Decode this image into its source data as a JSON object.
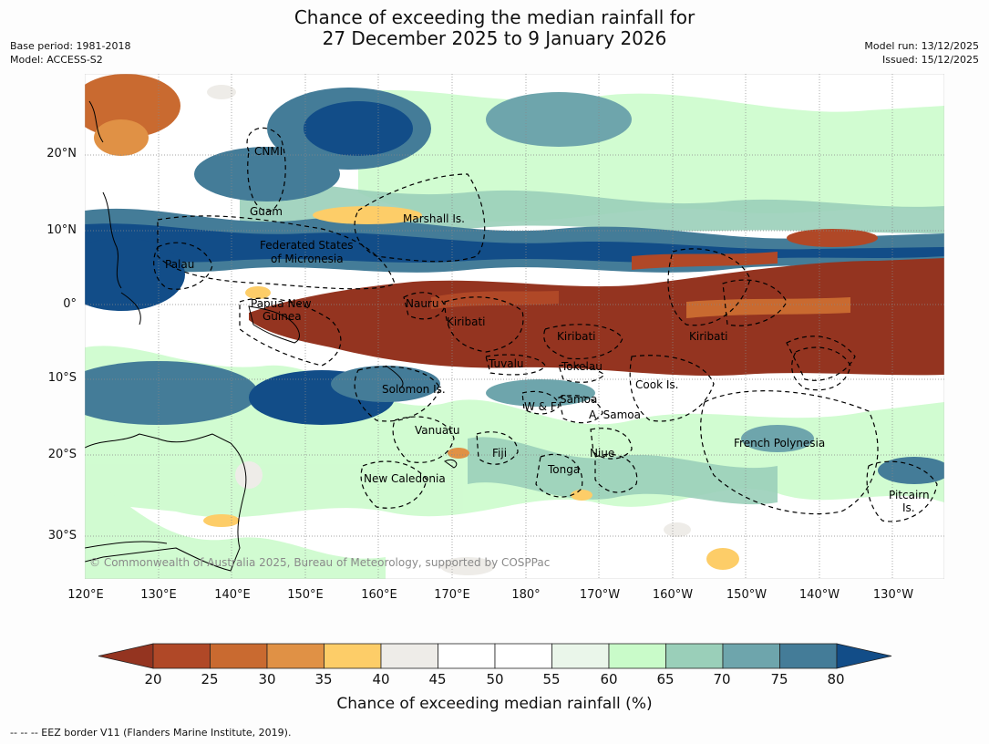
{
  "title_line1": "Chance of exceeding the median rainfall for",
  "title_line2": "27 December 2025 to 9 January 2026",
  "base_period": "Base period: 1981-2018",
  "model": "Model: ACCESS-S2",
  "model_run": "Model run: 13/12/2025",
  "issued": "Issued: 15/12/2025",
  "copyright": "© Commonwealth of Australia 2025, Bureau of Meteorology, supported by COSPPac",
  "footer": "--  --  -- EEZ border V11 (Flanders Marine Institute, 2019).",
  "lat_labels": [
    "20°N",
    "10°N",
    "0°",
    "10°S",
    "20°S",
    "30°S"
  ],
  "lon_labels": [
    "120°E",
    "130°E",
    "140°E",
    "150°E",
    "160°E",
    "170°E",
    "180°",
    "170°W",
    "160°W",
    "150°W",
    "140°W",
    "130°W"
  ],
  "region_labels": [
    "CNMI",
    "Guam",
    "Marshall Is.",
    "Federated States",
    "of Micronesia",
    "Palau",
    "Papua New",
    "Guinea",
    "Nauru",
    "Kiribati",
    "Kiribati",
    "Kiribati",
    "Tuvalu",
    "Tokelau",
    "Cook Is.",
    "Solomon Is.",
    "Samoa",
    "W & F",
    "A. Samoa",
    "Vanuatu",
    "Fiji",
    "Niue",
    "French Polynesia",
    "Tonga",
    "New Caledonia",
    "Pitcairn",
    "Is."
  ],
  "colorbar": {
    "label": "Chance of exceeding median rainfall (%)",
    "ticks": [
      "20",
      "25",
      "30",
      "35",
      "40",
      "45",
      "50",
      "55",
      "60",
      "65",
      "70",
      "75",
      "80"
    ],
    "colors": [
      "#943420",
      "#b04827",
      "#c96a30",
      "#e09145",
      "#fdcd68",
      "#eeece8",
      "#ffffff",
      "#ffffff",
      "#eaf6ea",
      "#c9fbc9",
      "#9acfb9",
      "#6ea5ac",
      "#447c98",
      "#124d88"
    ]
  }
}
